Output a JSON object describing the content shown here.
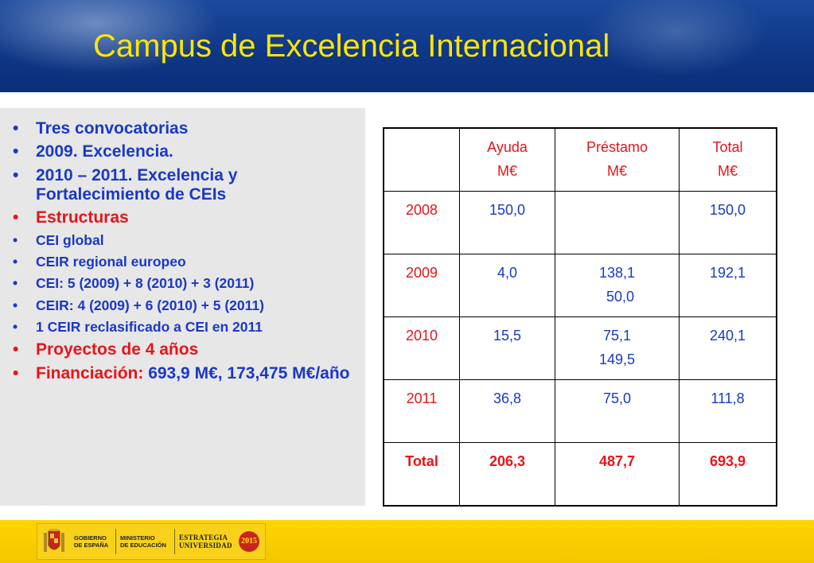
{
  "title": "Campus de Excelencia Internacional",
  "bullets": [
    {
      "text": "Tres convocatorias",
      "size": "big",
      "color": "blue"
    },
    {
      "text": "2009. Excelencia.",
      "size": "big",
      "color": "blue"
    },
    {
      "text": "2010 – 2011. Excelencia y Fortalecimiento de CEIs",
      "size": "big",
      "color": "blue"
    },
    {
      "text": "Estructuras",
      "size": "big",
      "color": "red"
    },
    {
      "text": "CEI global",
      "size": "small",
      "color": "blue"
    },
    {
      "text": "CEIR regional europeo",
      "size": "small",
      "color": "blue"
    },
    {
      "text": "CEI: 5 (2009) + 8 (2010) + 3 (2011)",
      "size": "small",
      "color": "blue"
    },
    {
      "text": "CEIR: 4 (2009) + 6 (2010) + 5 (2011)",
      "size": "small",
      "color": "blue"
    },
    {
      "text": "1 CEIR reclasificado a CEI en 2011",
      "size": "small",
      "color": "blue"
    },
    {
      "text": "Proyectos de 4 años",
      "size": "big",
      "color": "red"
    },
    {
      "text": "Financiación: ",
      "extra": "693,9 M€, 173,475 M€/año",
      "size": "big",
      "color": "red"
    }
  ],
  "table": {
    "headers": [
      {
        "line1": "",
        "line2": ""
      },
      {
        "line1": "Ayuda",
        "line2": "M€"
      },
      {
        "line1": "Préstamo",
        "line2": "M€"
      },
      {
        "line1": "Total",
        "line2": "M€"
      }
    ],
    "rows": [
      {
        "year": "2008",
        "ayuda": "150,0",
        "prestamo": [
          "",
          ""
        ],
        "total": "150,0"
      },
      {
        "year": "2009",
        "ayuda": "4,0",
        "prestamo": [
          "138,1",
          "50,0"
        ],
        "total": "192,1"
      },
      {
        "year": "2010",
        "ayuda": "15,5",
        "prestamo": [
          "75,1",
          "149,5"
        ],
        "total": "240,1"
      },
      {
        "year": "2011",
        "ayuda": "36,8",
        "prestamo": [
          "75,0",
          ""
        ],
        "total": "111,8"
      }
    ],
    "totals": {
      "label": "Total",
      "ayuda": "206,3",
      "prestamo": "487,7",
      "total": "693,9"
    }
  },
  "footer": {
    "gobierno": [
      "GOBIERNO",
      "DE ESPAÑA"
    ],
    "ministerio": [
      "MINISTERIO",
      "DE EDUCACIÓN"
    ],
    "estrategia": [
      "ESTRATEGIA",
      "UNIVERSIDAD"
    ],
    "badge": "2015"
  },
  "colors": {
    "title": "#ffe600",
    "blue_text": "#1a38c6",
    "red_text": "#e8141a",
    "header_bg": "#0f3787",
    "footer_bg": "#ffd400"
  }
}
